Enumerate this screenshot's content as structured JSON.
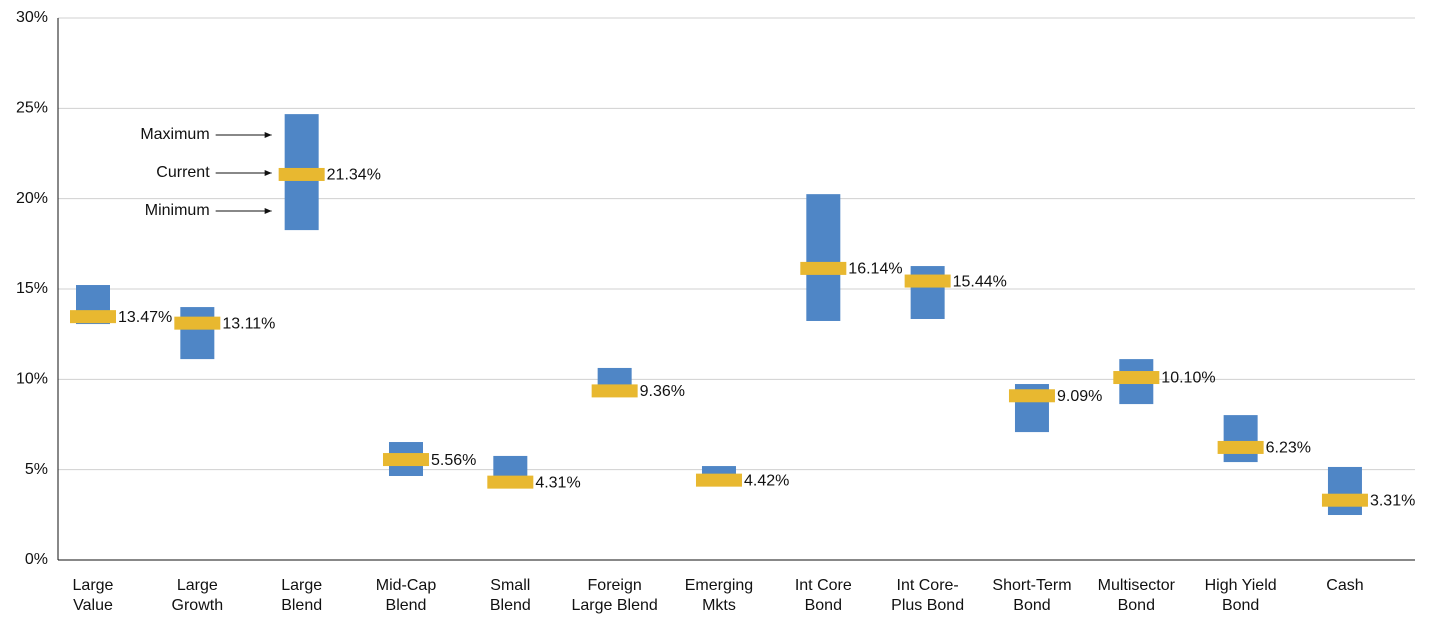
{
  "chart_data": {
    "type": "range",
    "categories": [
      "Large\nValue",
      "Large\nGrowth",
      "Large\nBlend",
      "Mid-Cap\nBlend",
      "Small\nBlend",
      "Foreign\nLarge Blend",
      "Emerging\nMkts",
      "Int Core\nBond",
      "Int Core-\nPlus Bond",
      "Short-Term\nBond",
      "Multisector\nBond",
      "High Yield\nBond",
      "Cash"
    ],
    "series": [
      {
        "name": "Maximum",
        "color": "#4f86c6",
        "values": [
          15.22,
          14.0,
          24.68,
          6.53,
          5.76,
          10.63,
          5.2,
          20.25,
          16.27,
          9.74,
          11.12,
          8.02,
          5.15
        ]
      },
      {
        "name": "Minimum",
        "color": "#4f86c6",
        "values": [
          13.06,
          11.12,
          18.26,
          4.65,
          4.2,
          9.3,
          4.3,
          13.23,
          13.34,
          7.08,
          8.63,
          5.42,
          2.49
        ]
      },
      {
        "name": "Current",
        "color": "#e8b830",
        "values": [
          13.47,
          13.11,
          21.34,
          5.56,
          4.31,
          9.36,
          4.42,
          16.14,
          15.44,
          9.09,
          10.1,
          6.23,
          3.31
        ],
        "value_labels": [
          "13.47%",
          "13.11%",
          "21.34%",
          "5.56%",
          "4.31%",
          "9.36%",
          "4.42%",
          "16.14%",
          "15.44%",
          "9.09%",
          "10.10%",
          "6.23%",
          "3.31%"
        ]
      }
    ],
    "ylim": [
      0,
      30
    ],
    "yticks": [
      {
        "value": 0,
        "label": "0%"
      },
      {
        "value": 5,
        "label": "5%"
      },
      {
        "value": 10,
        "label": "10%"
      },
      {
        "value": 15,
        "label": "15%"
      },
      {
        "value": 20,
        "label": "20%"
      },
      {
        "value": 25,
        "label": "25%"
      },
      {
        "value": 30,
        "label": "30%"
      }
    ],
    "grid": true
  }
}
